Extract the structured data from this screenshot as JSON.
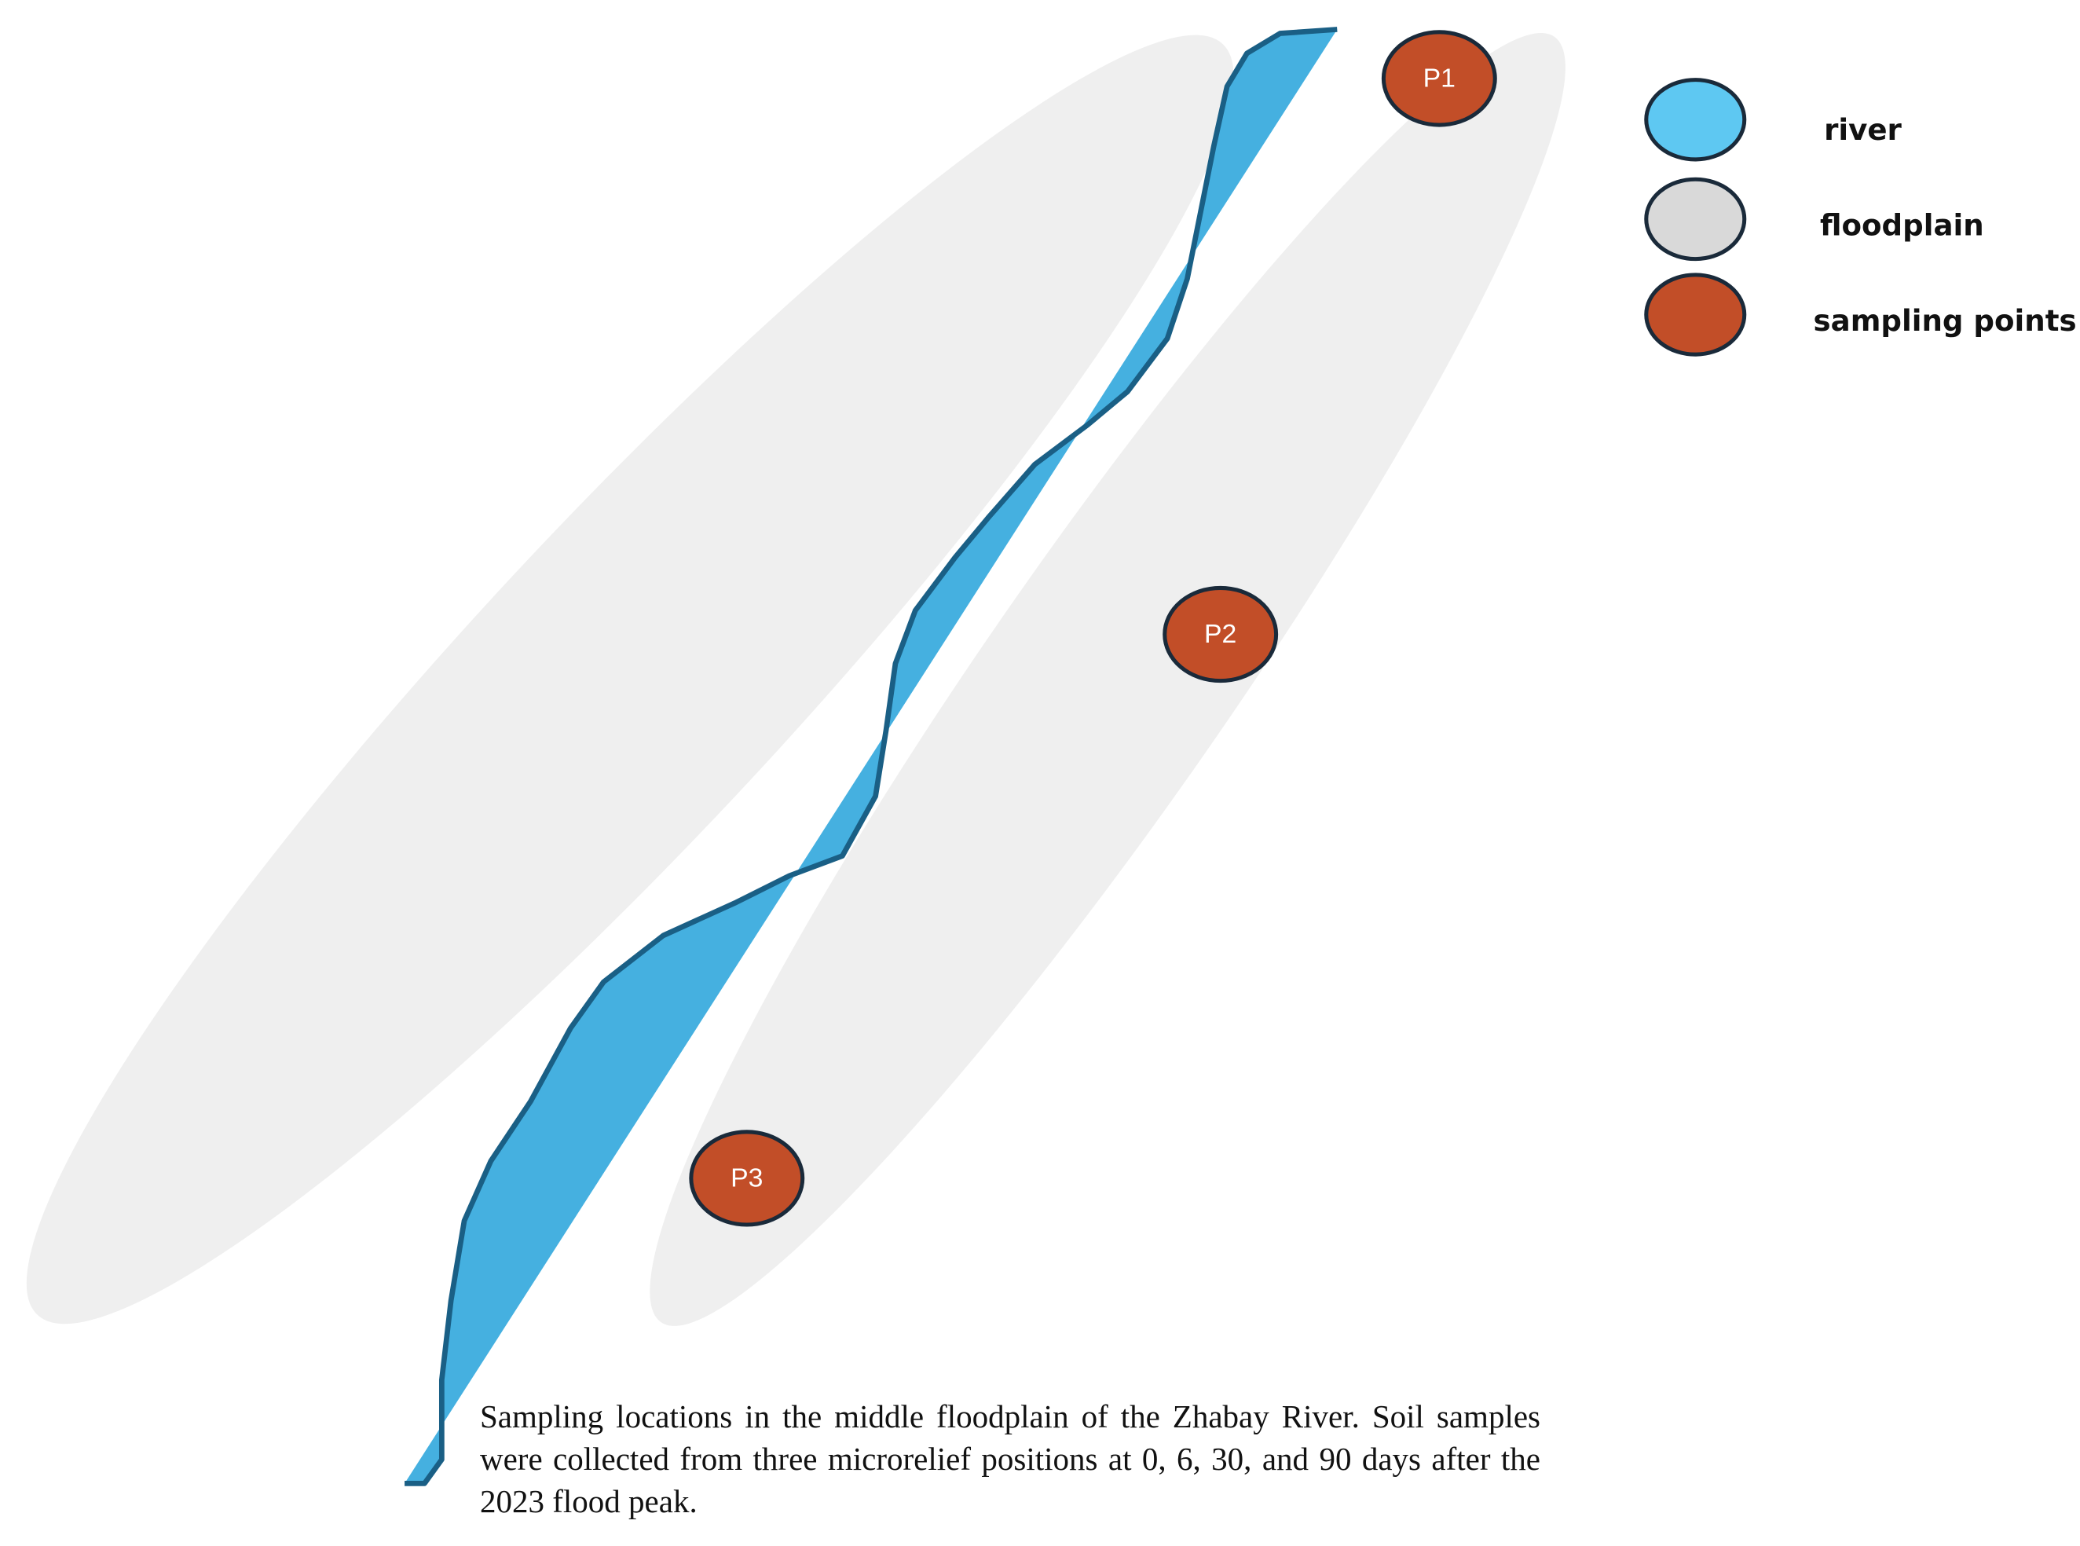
{
  "sampling_points": [
    {
      "label": "P1"
    },
    {
      "label": "P2"
    },
    {
      "label": "P3"
    }
  ],
  "legend": [
    {
      "label": "river"
    },
    {
      "label": "floodplain"
    },
    {
      "label": "sampling points"
    }
  ],
  "caption": "Sampling locations in the middle floodplain of the Zhabay River. Soil samples were collected from three microrelief positions at 0, 6, 30, and 90 days after the 2023 flood peak."
}
